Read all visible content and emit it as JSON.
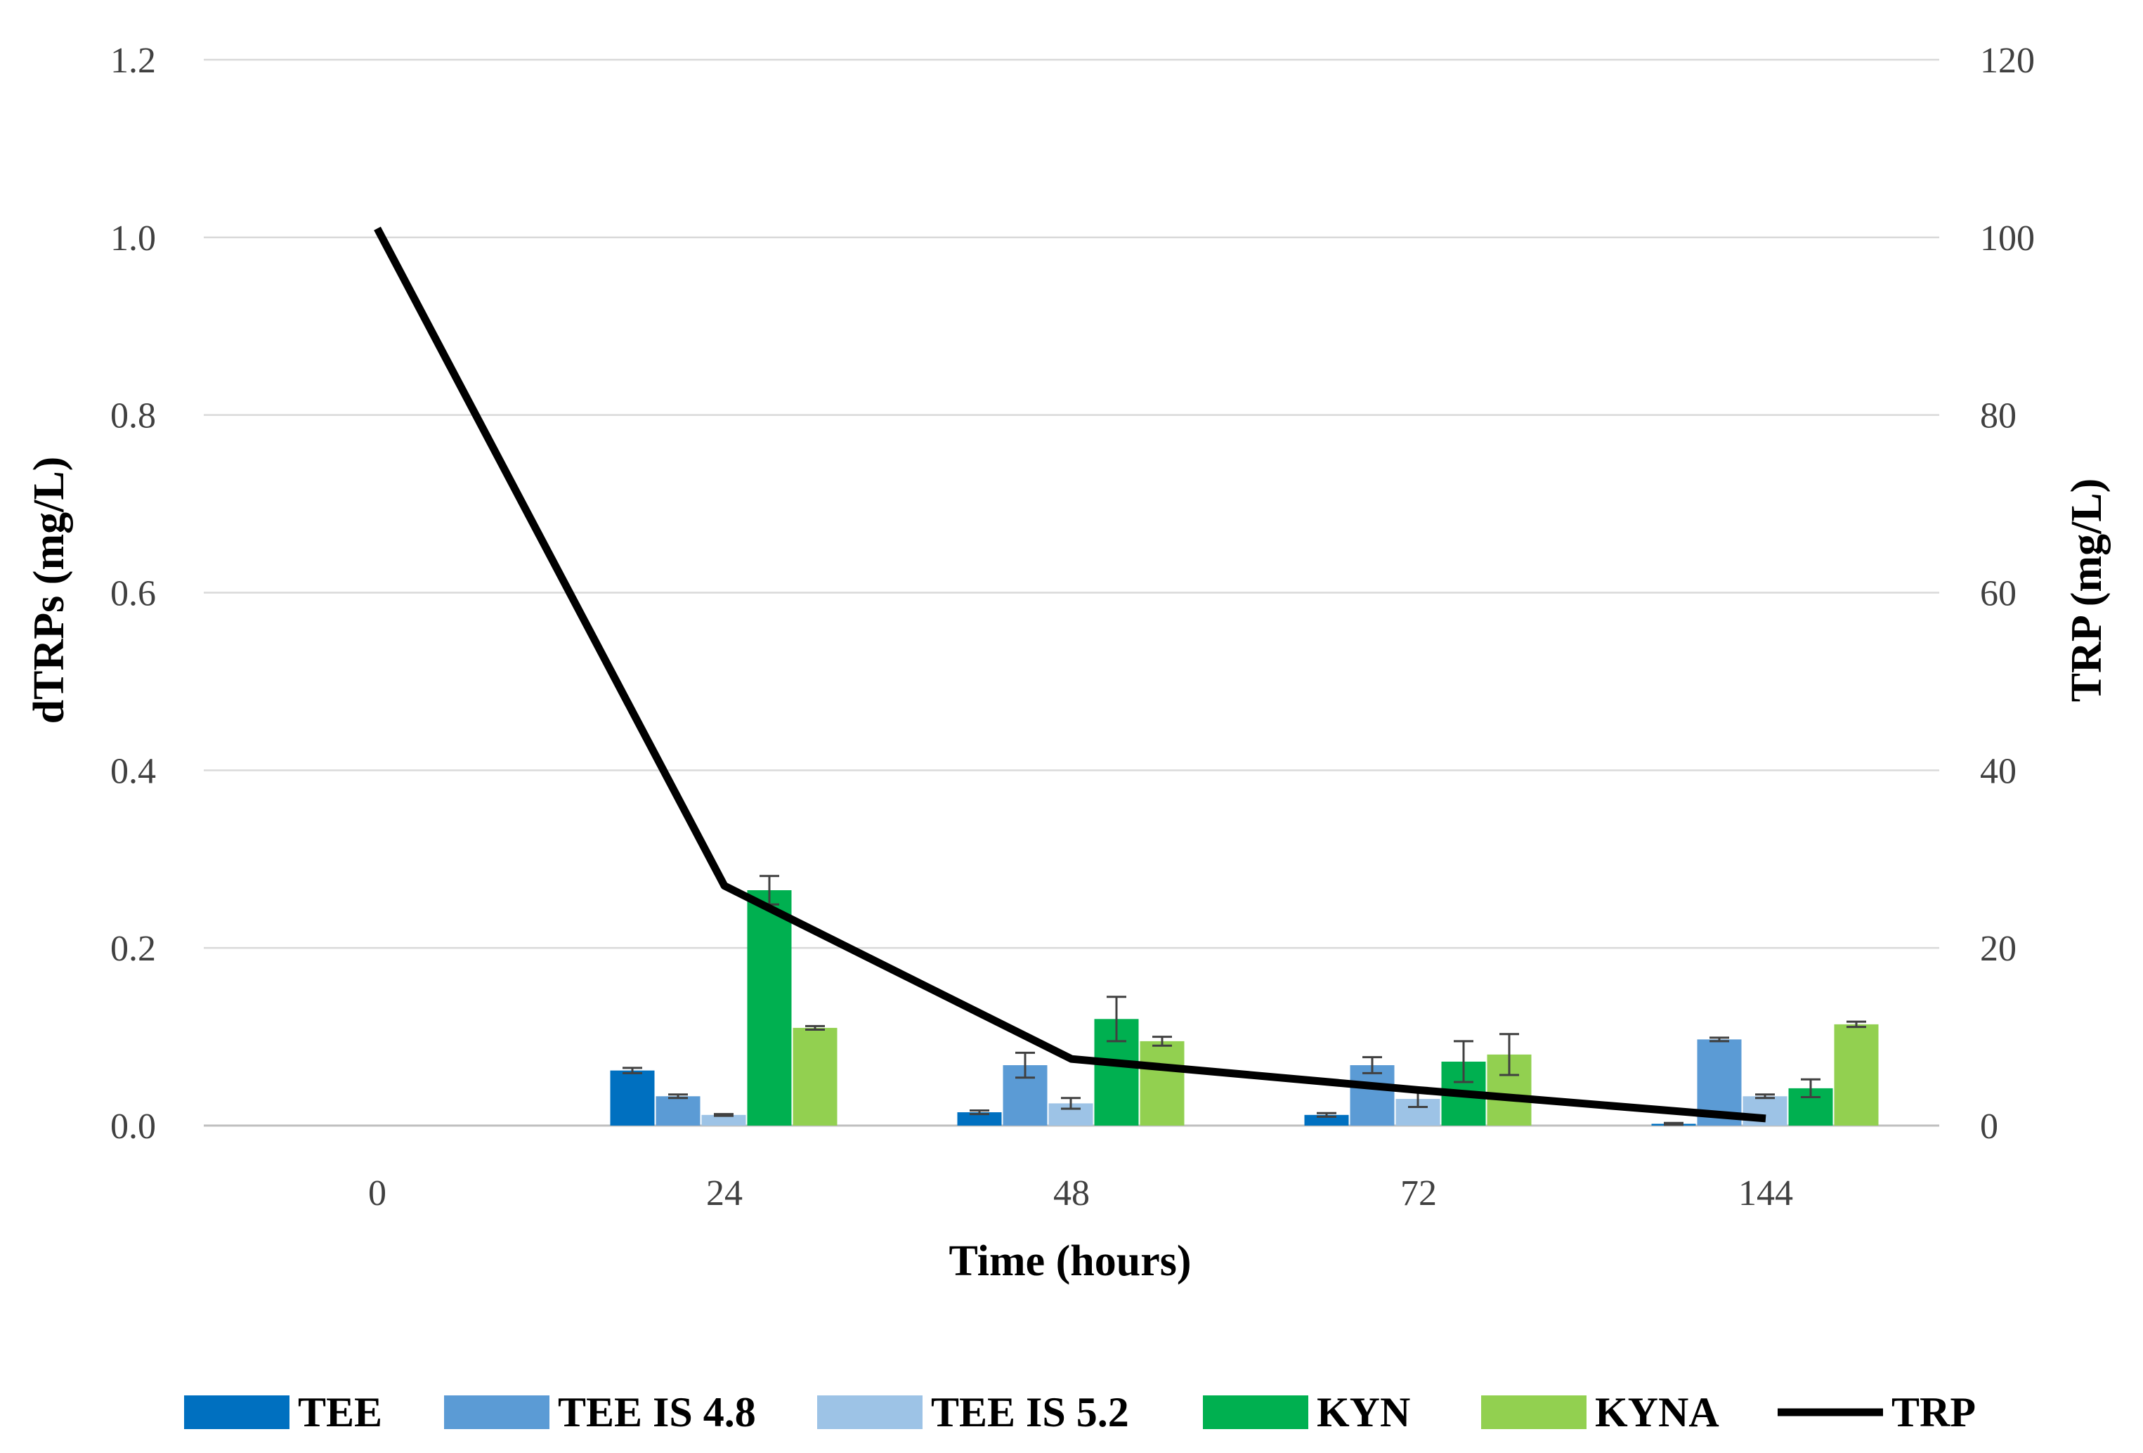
{
  "chart_data": {
    "type": "bar",
    "categories": [
      "0",
      "24",
      "48",
      "72",
      "144"
    ],
    "xlabel": "Time (hours)",
    "ylabel": "dTRPs (mg/L)",
    "y2label": "TRP (mg/L)",
    "ylim": [
      0,
      1.2
    ],
    "y2lim": [
      0,
      120
    ],
    "yticks": [
      "0.0",
      "0.2",
      "0.4",
      "0.6",
      "0.8",
      "1.0",
      "1.2"
    ],
    "y2ticks": [
      "0",
      "20",
      "40",
      "60",
      "80",
      "100",
      "120"
    ],
    "grid": true,
    "legend_position": "bottom",
    "series": [
      {
        "name": "TEE",
        "color": "#0070c0",
        "values": [
          0,
          0.062,
          0.015,
          0.012,
          0.002
        ],
        "errors": [
          0,
          0.003,
          0.002,
          0.002,
          0.001
        ]
      },
      {
        "name": "TEE IS 4.8",
        "color": "#5b9bd5",
        "values": [
          0,
          0.033,
          0.068,
          0.068,
          0.097
        ],
        "errors": [
          0,
          0.002,
          0.014,
          0.009,
          0.002
        ]
      },
      {
        "name": "TEE IS 5.2",
        "color": "#9dc3e6",
        "values": [
          0,
          0.012,
          0.025,
          0.03,
          0.033
        ],
        "errors": [
          0,
          0.001,
          0.006,
          0.009,
          0.002
        ]
      },
      {
        "name": "KYN",
        "color": "#00b050",
        "values": [
          0,
          0.265,
          0.12,
          0.072,
          0.042
        ],
        "errors": [
          0,
          0.016,
          0.025,
          0.023,
          0.01
        ]
      },
      {
        "name": "KYNA",
        "color": "#92d050",
        "values": [
          0,
          0.11,
          0.095,
          0.08,
          0.114
        ],
        "errors": [
          0,
          0.002,
          0.005,
          0.023,
          0.003
        ]
      }
    ],
    "line_series": {
      "name": "TRP",
      "color": "#000000",
      "axis": "secondary",
      "values": [
        101,
        27,
        7.5,
        4,
        0.8
      ]
    }
  }
}
